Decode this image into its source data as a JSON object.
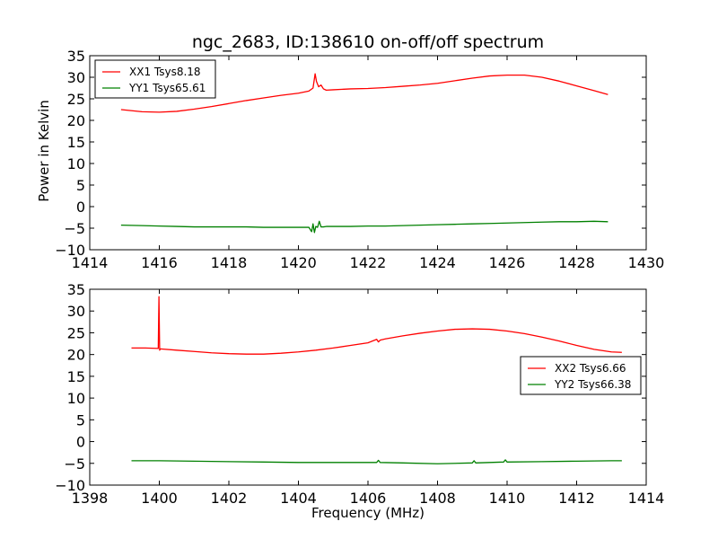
{
  "figure": {
    "title": "ngc_2683, ID:138610 on-off/off spectrum",
    "ylabel": "Power in Kelvin",
    "xlabel": "Frequency (MHz)"
  },
  "chart_data": [
    {
      "type": "line",
      "title": "ngc_2683, ID:138610 on-off/off spectrum",
      "xlabel": "",
      "ylabel": "Power in Kelvin",
      "xlim": [
        1414,
        1430
      ],
      "ylim": [
        -10,
        35
      ],
      "xticks": [
        1414,
        1416,
        1418,
        1420,
        1422,
        1424,
        1426,
        1428,
        1430
      ],
      "yticks": [
        -10,
        -5,
        0,
        5,
        10,
        15,
        20,
        25,
        30,
        35
      ],
      "grid": false,
      "legend_position": "upper-left",
      "series": [
        {
          "name": "XX1 Tsys8.18",
          "color": "#ff0000",
          "x": [
            1414.9,
            1415.5,
            1416.0,
            1416.5,
            1417.0,
            1417.5,
            1418.0,
            1418.5,
            1419.0,
            1419.5,
            1420.0,
            1420.3,
            1420.42,
            1420.48,
            1420.52,
            1420.58,
            1420.65,
            1420.72,
            1420.8,
            1421.0,
            1421.5,
            1422.0,
            1422.5,
            1423.0,
            1423.5,
            1424.0,
            1424.5,
            1425.0,
            1425.5,
            1426.0,
            1426.5,
            1427.0,
            1427.5,
            1428.0,
            1428.5,
            1428.9
          ],
          "y": [
            22.5,
            22.0,
            21.9,
            22.1,
            22.6,
            23.2,
            23.9,
            24.6,
            25.2,
            25.8,
            26.3,
            26.8,
            27.5,
            30.8,
            29.0,
            27.8,
            28.2,
            27.3,
            27.0,
            27.1,
            27.3,
            27.4,
            27.6,
            27.9,
            28.2,
            28.6,
            29.2,
            29.8,
            30.3,
            30.5,
            30.5,
            30.0,
            29.1,
            28.0,
            26.9,
            26.0
          ]
        },
        {
          "name": "YY1 Tsys65.61",
          "color": "#008000",
          "x": [
            1414.9,
            1415.5,
            1416.0,
            1416.5,
            1417.0,
            1417.5,
            1418.0,
            1418.5,
            1419.0,
            1419.5,
            1420.0,
            1420.3,
            1420.38,
            1420.42,
            1420.46,
            1420.5,
            1420.55,
            1420.6,
            1420.65,
            1420.72,
            1420.8,
            1421.0,
            1421.5,
            1422.0,
            1422.5,
            1423.0,
            1423.5,
            1424.0,
            1424.5,
            1425.0,
            1425.5,
            1426.0,
            1426.5,
            1427.0,
            1427.5,
            1428.0,
            1428.5,
            1428.9
          ],
          "y": [
            -4.3,
            -4.4,
            -4.5,
            -4.6,
            -4.7,
            -4.7,
            -4.7,
            -4.7,
            -4.8,
            -4.8,
            -4.8,
            -4.8,
            -5.8,
            -4.0,
            -6.0,
            -4.6,
            -4.8,
            -3.4,
            -4.7,
            -4.7,
            -4.6,
            -4.6,
            -4.6,
            -4.5,
            -4.5,
            -4.4,
            -4.3,
            -4.2,
            -4.1,
            -4.0,
            -3.9,
            -3.8,
            -3.7,
            -3.6,
            -3.5,
            -3.5,
            -3.4,
            -3.5
          ]
        }
      ]
    },
    {
      "type": "line",
      "title": "",
      "xlabel": "Frequency (MHz)",
      "ylabel": "",
      "xlim": [
        1398,
        1414
      ],
      "ylim": [
        -10,
        35
      ],
      "xticks": [
        1398,
        1400,
        1402,
        1404,
        1406,
        1408,
        1410,
        1412,
        1414
      ],
      "yticks": [
        -10,
        -5,
        0,
        5,
        10,
        15,
        20,
        25,
        30,
        35
      ],
      "grid": false,
      "legend_position": "center-right",
      "series": [
        {
          "name": "XX2 Tsys6.66",
          "color": "#ff0000",
          "x": [
            1399.2,
            1399.6,
            1399.97,
            1399.99,
            1400.01,
            1400.03,
            1400.5,
            1401.0,
            1401.5,
            1402.0,
            1402.5,
            1403.0,
            1403.5,
            1404.0,
            1404.5,
            1405.0,
            1405.5,
            1406.0,
            1406.25,
            1406.3,
            1406.35,
            1406.5,
            1407.0,
            1407.5,
            1408.0,
            1408.5,
            1409.0,
            1409.5,
            1410.0,
            1410.5,
            1411.0,
            1411.5,
            1412.0,
            1412.5,
            1413.0,
            1413.3
          ],
          "y": [
            21.5,
            21.5,
            21.4,
            33.3,
            21.0,
            21.3,
            21.0,
            20.7,
            20.4,
            20.2,
            20.1,
            20.1,
            20.3,
            20.6,
            21.0,
            21.5,
            22.1,
            22.7,
            23.5,
            22.9,
            23.3,
            23.6,
            24.3,
            24.9,
            25.4,
            25.8,
            25.9,
            25.8,
            25.4,
            24.8,
            24.0,
            23.1,
            22.1,
            21.2,
            20.6,
            20.5
          ]
        },
        {
          "name": "YY2 Tsys66.38",
          "color": "#008000",
          "x": [
            1399.2,
            1400.0,
            1401.0,
            1402.0,
            1403.0,
            1404.0,
            1405.0,
            1406.0,
            1406.25,
            1406.3,
            1406.35,
            1407.0,
            1408.0,
            1409.0,
            1409.05,
            1409.1,
            1409.9,
            1409.95,
            1410.0,
            1411.0,
            1412.0,
            1413.0,
            1413.3
          ],
          "y": [
            -4.4,
            -4.4,
            -4.5,
            -4.6,
            -4.7,
            -4.8,
            -4.8,
            -4.8,
            -4.8,
            -4.3,
            -4.8,
            -4.9,
            -5.1,
            -4.9,
            -4.4,
            -4.9,
            -4.7,
            -4.2,
            -4.7,
            -4.6,
            -4.5,
            -4.4,
            -4.4
          ]
        }
      ]
    }
  ]
}
